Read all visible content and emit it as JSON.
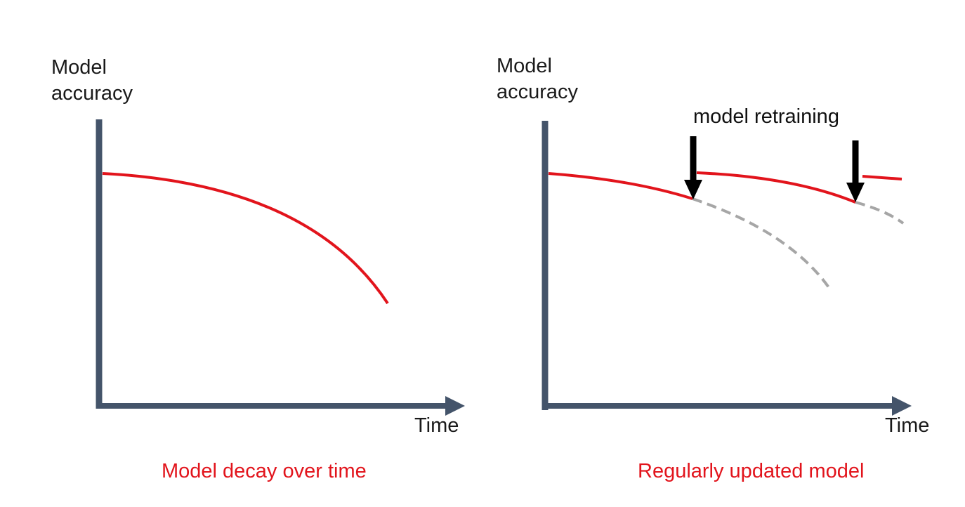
{
  "colors": {
    "axis": "#44546a",
    "accuracy_line": "#e2141c",
    "projected_line": "#a6a6a6",
    "arrow": "#000000",
    "caption": "#e2141c",
    "text": "#1a1a1a"
  },
  "left_panel": {
    "y_label_line1": "Model",
    "y_label_line2": "accuracy",
    "x_label": "Time",
    "caption": "Model decay over time"
  },
  "right_panel": {
    "y_label_line1": "Model",
    "y_label_line2": "accuracy",
    "x_label": "Time",
    "annotation": "model retraining",
    "caption": "Regularly updated model"
  }
}
